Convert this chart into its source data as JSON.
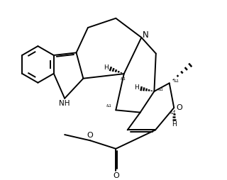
{
  "bg_color": "#ffffff",
  "line_color": "#000000",
  "line_width": 1.4,
  "font_size": 6.5,
  "figsize": [
    3.2,
    2.54
  ],
  "dpi": 100,
  "xlim": [
    0.0,
    10.0
  ],
  "ylim": [
    0.0,
    8.0
  ]
}
